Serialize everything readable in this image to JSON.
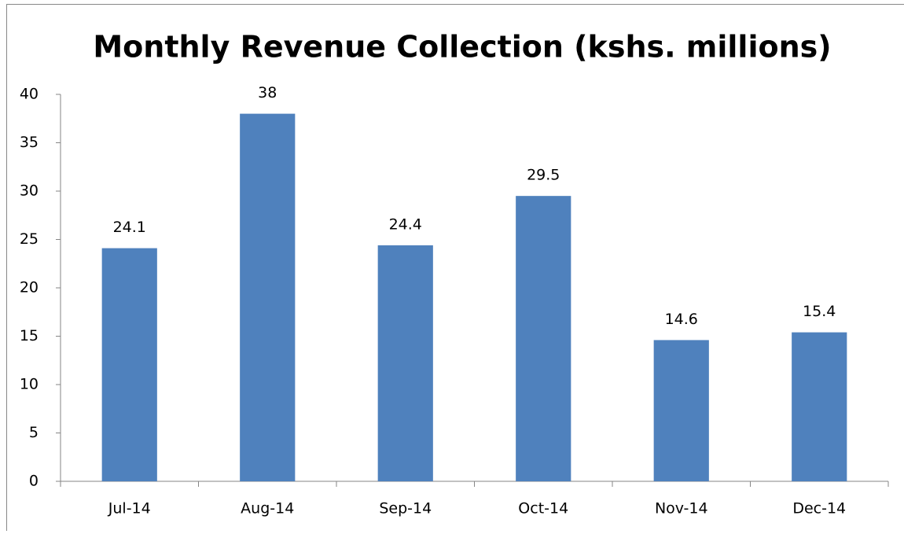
{
  "chart_data": {
    "type": "bar",
    "title": "Monthly Revenue Collection (kshs. millions)",
    "categories": [
      "Jul-14",
      "Aug-14",
      "Sep-14",
      "Oct-14",
      "Nov-14",
      "Dec-14"
    ],
    "values": [
      24.1,
      38,
      24.4,
      29.5,
      14.6,
      15.4
    ],
    "color": "#4f81bd",
    "ylim": [
      0,
      40
    ],
    "yticks": [
      0,
      5,
      10,
      15,
      20,
      25,
      30,
      35,
      40
    ],
    "grid": false,
    "data_labels": true
  }
}
